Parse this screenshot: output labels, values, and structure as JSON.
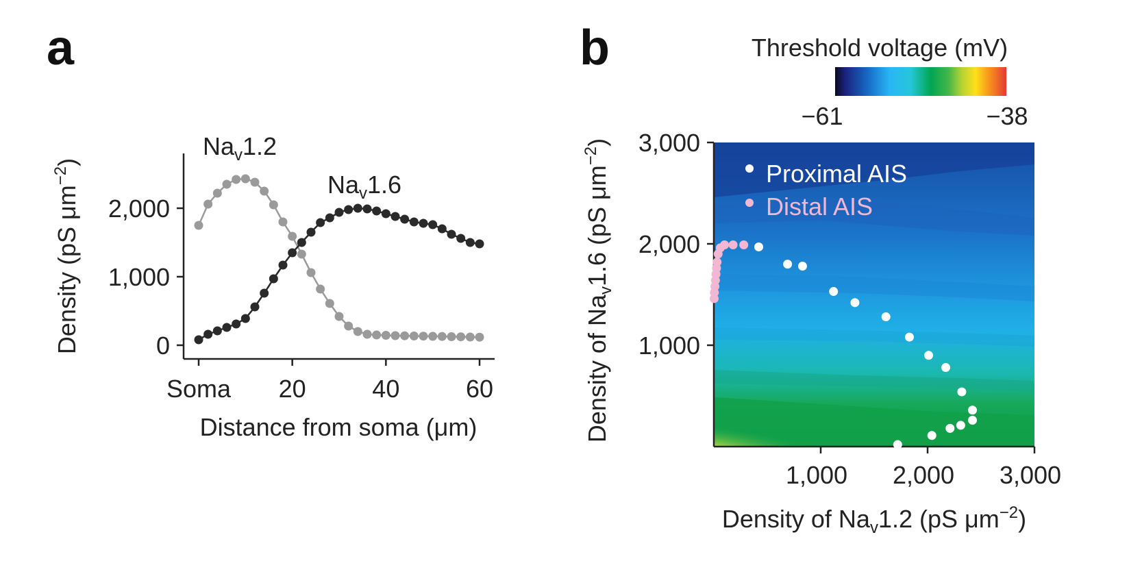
{
  "panels": {
    "a": "a",
    "b": "b"
  },
  "chart_data": [
    {
      "type": "line",
      "panel": "a",
      "xlabel": "Distance from soma (μm)",
      "ylabel": "Density (pS μm⁻²)",
      "xlim": [
        -1,
        61
      ],
      "ylim": [
        -150,
        2800
      ],
      "x_ticks": [
        {
          "value": 0,
          "label": "Soma"
        },
        {
          "value": 20,
          "label": "20"
        },
        {
          "value": 40,
          "label": "40"
        },
        {
          "value": 60,
          "label": "60"
        }
      ],
      "y_ticks": [
        {
          "value": 0,
          "label": "0"
        },
        {
          "value": 1000,
          "label": "1,000"
        },
        {
          "value": 2000,
          "label": "2,000"
        }
      ],
      "x": [
        0,
        2,
        4,
        6,
        8,
        10,
        12,
        14,
        16,
        18,
        20,
        22,
        24,
        26,
        28,
        30,
        32,
        34,
        36,
        38,
        40,
        42,
        44,
        46,
        48,
        50,
        52,
        54,
        56,
        58,
        60
      ],
      "series": [
        {
          "name": "Naᵥ1.2",
          "color": "#9a9a9a",
          "values": [
            1750,
            2060,
            2220,
            2350,
            2420,
            2430,
            2380,
            2250,
            2050,
            1800,
            1590,
            1330,
            1060,
            820,
            610,
            420,
            280,
            200,
            160,
            150,
            145,
            140,
            138,
            135,
            133,
            130,
            128,
            125,
            123,
            120,
            118
          ]
        },
        {
          "name": "Naᵥ1.6",
          "color": "#2a2a2a",
          "values": [
            80,
            160,
            210,
            260,
            310,
            390,
            560,
            760,
            970,
            1170,
            1350,
            1500,
            1650,
            1790,
            1860,
            1940,
            1980,
            2000,
            1990,
            1960,
            1920,
            1880,
            1840,
            1800,
            1780,
            1760,
            1700,
            1620,
            1560,
            1500,
            1480
          ]
        }
      ]
    },
    {
      "type": "scatter",
      "panel": "b",
      "xlabel": "Density of Naᵥ1.2 (pS μm⁻²)",
      "ylabel": "Density of Naᵥ1.6 (pS μm⁻²)",
      "xlim": [
        0,
        3000
      ],
      "ylim": [
        0,
        3000
      ],
      "x_ticks": [
        {
          "value": 1000,
          "label": "1,000"
        },
        {
          "value": 2000,
          "label": "2,000"
        },
        {
          "value": 3000,
          "label": "3,000"
        }
      ],
      "y_ticks": [
        {
          "value": 1000,
          "label": "1,000"
        },
        {
          "value": 2000,
          "label": "2,000"
        },
        {
          "value": 3000,
          "label": "3,000"
        }
      ],
      "colorbar": {
        "title": "Threshold voltage (mV)",
        "min_label": "−61",
        "max_label": "−38",
        "min": -61,
        "max": -38
      },
      "background": "contour heatmap of threshold voltage",
      "series": [
        {
          "name": "Proximal AIS",
          "color": "#ffffff",
          "points": [
            [
              1720,
              20
            ],
            [
              2040,
              110
            ],
            [
              2210,
              180
            ],
            [
              2310,
              210
            ],
            [
              2420,
              260
            ],
            [
              2420,
              360
            ],
            [
              2320,
              540
            ],
            [
              2170,
              780
            ],
            [
              2010,
              900
            ],
            [
              1830,
              1080
            ],
            [
              1610,
              1280
            ],
            [
              1320,
              1420
            ],
            [
              1120,
              1530
            ],
            [
              830,
              1780
            ],
            [
              690,
              1800
            ],
            [
              420,
              1970
            ]
          ]
        },
        {
          "name": "Distal AIS",
          "color": "#f2b7d2",
          "points": [
            [
              280,
              1990
            ],
            [
              180,
              1990
            ],
            [
              100,
              1990
            ],
            [
              60,
              1960
            ],
            [
              40,
              1900
            ],
            [
              30,
              1820
            ],
            [
              25,
              1760
            ],
            [
              20,
              1700
            ],
            [
              15,
              1640
            ],
            [
              10,
              1580
            ],
            [
              5,
              1520
            ],
            [
              3,
              1460
            ]
          ]
        }
      ]
    }
  ]
}
